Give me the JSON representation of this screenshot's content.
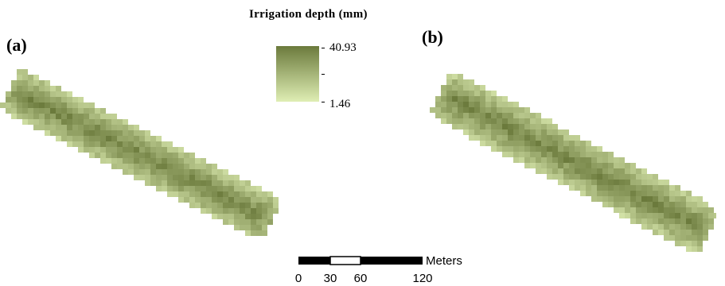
{
  "panels": [
    {
      "label": "(a)"
    },
    {
      "label": "(b)"
    }
  ],
  "legend": {
    "title": "Irrigation depth (mm)",
    "max_value": "40.93",
    "min_value": "1.46",
    "color_high": "#6b7a3c",
    "color_low": "#dfeeb4"
  },
  "scale_bar": {
    "unit": "Meters",
    "ticks": [
      "0",
      "30",
      "60",
      "120"
    ]
  }
}
